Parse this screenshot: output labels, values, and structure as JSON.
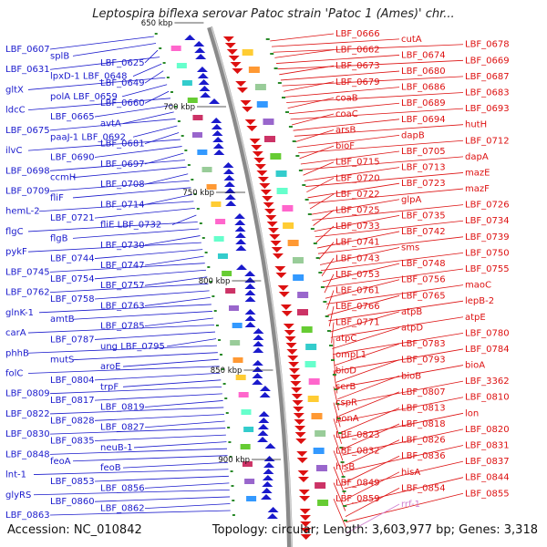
{
  "title": "Leptospira biflexa serovar Patoc strain 'Patoc 1 (Ames)' chr...",
  "footer": {
    "accession": "Accession: NC_010842",
    "topology": "Topology: circular; Length: 3,603,977 bp; Genes: 3,318"
  },
  "colors": {
    "minus_strand": "#1a1acc",
    "plus_strand": "#dd1111",
    "backbone": "#888888",
    "tick": "#2a8a2a",
    "rna": "#d080d0"
  },
  "scale_ticks": [
    {
      "label": "650 kbp"
    },
    {
      "label": "700 kbp"
    },
    {
      "label": "750 kbp"
    },
    {
      "label": "800 kbp"
    },
    {
      "label": "850 kbp"
    },
    {
      "label": "900 kbp"
    }
  ],
  "left_labels": [
    {
      "text": "LBF_0607"
    },
    {
      "text": "splB"
    },
    {
      "text": "LBF_0625"
    },
    {
      "text": "LBF_0631"
    },
    {
      "text": "lpxD-1 LBF_0648"
    },
    {
      "text": "LBF_0649"
    },
    {
      "text": "gltX"
    },
    {
      "text": "polA LBF_0659"
    },
    {
      "text": "LBF_0660"
    },
    {
      "text": "ldcC"
    },
    {
      "text": "LBF_0665"
    },
    {
      "text": "avtA"
    },
    {
      "text": "LBF_0675"
    },
    {
      "text": "paaJ-1 LBF_0692"
    },
    {
      "text": "LBF_0681"
    },
    {
      "text": "ilvC"
    },
    {
      "text": "LBF_0690"
    },
    {
      "text": "LBF_0697"
    },
    {
      "text": "LBF_0698"
    },
    {
      "text": "ccmH"
    },
    {
      "text": "LBF_0708"
    },
    {
      "text": "LBF_0709"
    },
    {
      "text": "fliF"
    },
    {
      "text": "LBF_0714"
    },
    {
      "text": "hemL-2"
    },
    {
      "text": "LBF_0721"
    },
    {
      "text": "fliE LBF_0732"
    },
    {
      "text": "flgC"
    },
    {
      "text": "flgB"
    },
    {
      "text": "LBF_0730"
    },
    {
      "text": "pykF"
    },
    {
      "text": "LBF_0744"
    },
    {
      "text": "LBF_0747"
    },
    {
      "text": "LBF_0745"
    },
    {
      "text": "LBF_0754"
    },
    {
      "text": "LBF_0757"
    },
    {
      "text": "LBF_0762"
    },
    {
      "text": "LBF_0758"
    },
    {
      "text": "LBF_0763"
    },
    {
      "text": "glnK-1"
    },
    {
      "text": "amtB"
    },
    {
      "text": "LBF_0785"
    },
    {
      "text": "carA"
    },
    {
      "text": "LBF_0787"
    },
    {
      "text": "ung LBF_0795"
    },
    {
      "text": "phhB"
    },
    {
      "text": "mutS"
    },
    {
      "text": "aroE"
    },
    {
      "text": "folC"
    },
    {
      "text": "LBF_0804"
    },
    {
      "text": "trpF"
    },
    {
      "text": "LBF_0809"
    },
    {
      "text": "LBF_0817"
    },
    {
      "text": "LBF_0819"
    },
    {
      "text": "LBF_0822"
    },
    {
      "text": "LBF_0828"
    },
    {
      "text": "LBF_0827"
    },
    {
      "text": "LBF_0830"
    },
    {
      "text": "LBF_0835"
    },
    {
      "text": "neuB-1"
    },
    {
      "text": "LBF_0848"
    },
    {
      "text": "feoA"
    },
    {
      "text": "feoB"
    },
    {
      "text": "lnt-1"
    },
    {
      "text": "LBF_0853"
    },
    {
      "text": "LBF_0856"
    },
    {
      "text": "glyRS"
    },
    {
      "text": "LBF_0860"
    },
    {
      "text": "LBF_0862"
    },
    {
      "text": "LBF_0863"
    }
  ],
  "right_labels": [
    {
      "text": "LBF_0666"
    },
    {
      "text": "cutA"
    },
    {
      "text": "LBF_0678"
    },
    {
      "text": "LBF_0662"
    },
    {
      "text": "LBF_0674"
    },
    {
      "text": "LBF_0669"
    },
    {
      "text": "LBF_0673"
    },
    {
      "text": "LBF_0680"
    },
    {
      "text": "LBF_0687"
    },
    {
      "text": "LBF_0679"
    },
    {
      "text": "LBF_0686"
    },
    {
      "text": "LBF_0683"
    },
    {
      "text": "coaB"
    },
    {
      "text": "LBF_0689"
    },
    {
      "text": "LBF_0693"
    },
    {
      "text": "coaC"
    },
    {
      "text": "LBF_0694"
    },
    {
      "text": "hutH"
    },
    {
      "text": "arsB"
    },
    {
      "text": "dapB"
    },
    {
      "text": "LBF_0712"
    },
    {
      "text": "bioF"
    },
    {
      "text": "LBF_0705"
    },
    {
      "text": "dapA"
    },
    {
      "text": "LBF_0715"
    },
    {
      "text": "LBF_0713"
    },
    {
      "text": "mazE"
    },
    {
      "text": "LBF_0720"
    },
    {
      "text": "LBF_0723"
    },
    {
      "text": "mazF"
    },
    {
      "text": "LBF_0722"
    },
    {
      "text": "glpA"
    },
    {
      "text": "LBF_0726"
    },
    {
      "text": "LBF_0725"
    },
    {
      "text": "LBF_0735"
    },
    {
      "text": "LBF_0734"
    },
    {
      "text": "LBF_0733"
    },
    {
      "text": "LBF_0742"
    },
    {
      "text": "LBF_0739"
    },
    {
      "text": "LBF_0741"
    },
    {
      "text": "sms"
    },
    {
      "text": "LBF_0750"
    },
    {
      "text": "LBF_0743"
    },
    {
      "text": "LBF_0748"
    },
    {
      "text": "LBF_0755"
    },
    {
      "text": "LBF_0753"
    },
    {
      "text": "LBF_0756"
    },
    {
      "text": "maoC"
    },
    {
      "text": "LBF_0761"
    },
    {
      "text": "LBF_0765"
    },
    {
      "text": "lepB-2"
    },
    {
      "text": "LBF_0766"
    },
    {
      "text": "atpB"
    },
    {
      "text": "atpE"
    },
    {
      "text": "LBF_0771"
    },
    {
      "text": "atpD"
    },
    {
      "text": "LBF_0780"
    },
    {
      "text": "atpC"
    },
    {
      "text": "LBF_0783"
    },
    {
      "text": "LBF_0784"
    },
    {
      "text": "ompL1"
    },
    {
      "text": "LBF_0793"
    },
    {
      "text": "bioA"
    },
    {
      "text": "bioD"
    },
    {
      "text": "bioB"
    },
    {
      "text": "LBF_3362"
    },
    {
      "text": "serB"
    },
    {
      "text": "LBF_0807"
    },
    {
      "text": "LBF_0810"
    },
    {
      "text": "cspR"
    },
    {
      "text": "LBF_0813"
    },
    {
      "text": "lon"
    },
    {
      "text": "ponA"
    },
    {
      "text": "LBF_0818"
    },
    {
      "text": "LBF_0820"
    },
    {
      "text": "LBF_0823"
    },
    {
      "text": "LBF_0826"
    },
    {
      "text": "LBF_0831"
    },
    {
      "text": "LBF_0832"
    },
    {
      "text": "LBF_0836"
    },
    {
      "text": "LBF_0837"
    },
    {
      "text": "hisB"
    },
    {
      "text": "hisA"
    },
    {
      "text": "LBF_0844"
    },
    {
      "text": "LBF_0849"
    },
    {
      "text": "LBF_0854"
    },
    {
      "text": "LBF_0855"
    },
    {
      "text": "LBF_0859"
    },
    {
      "text": "rrf-1"
    }
  ]
}
